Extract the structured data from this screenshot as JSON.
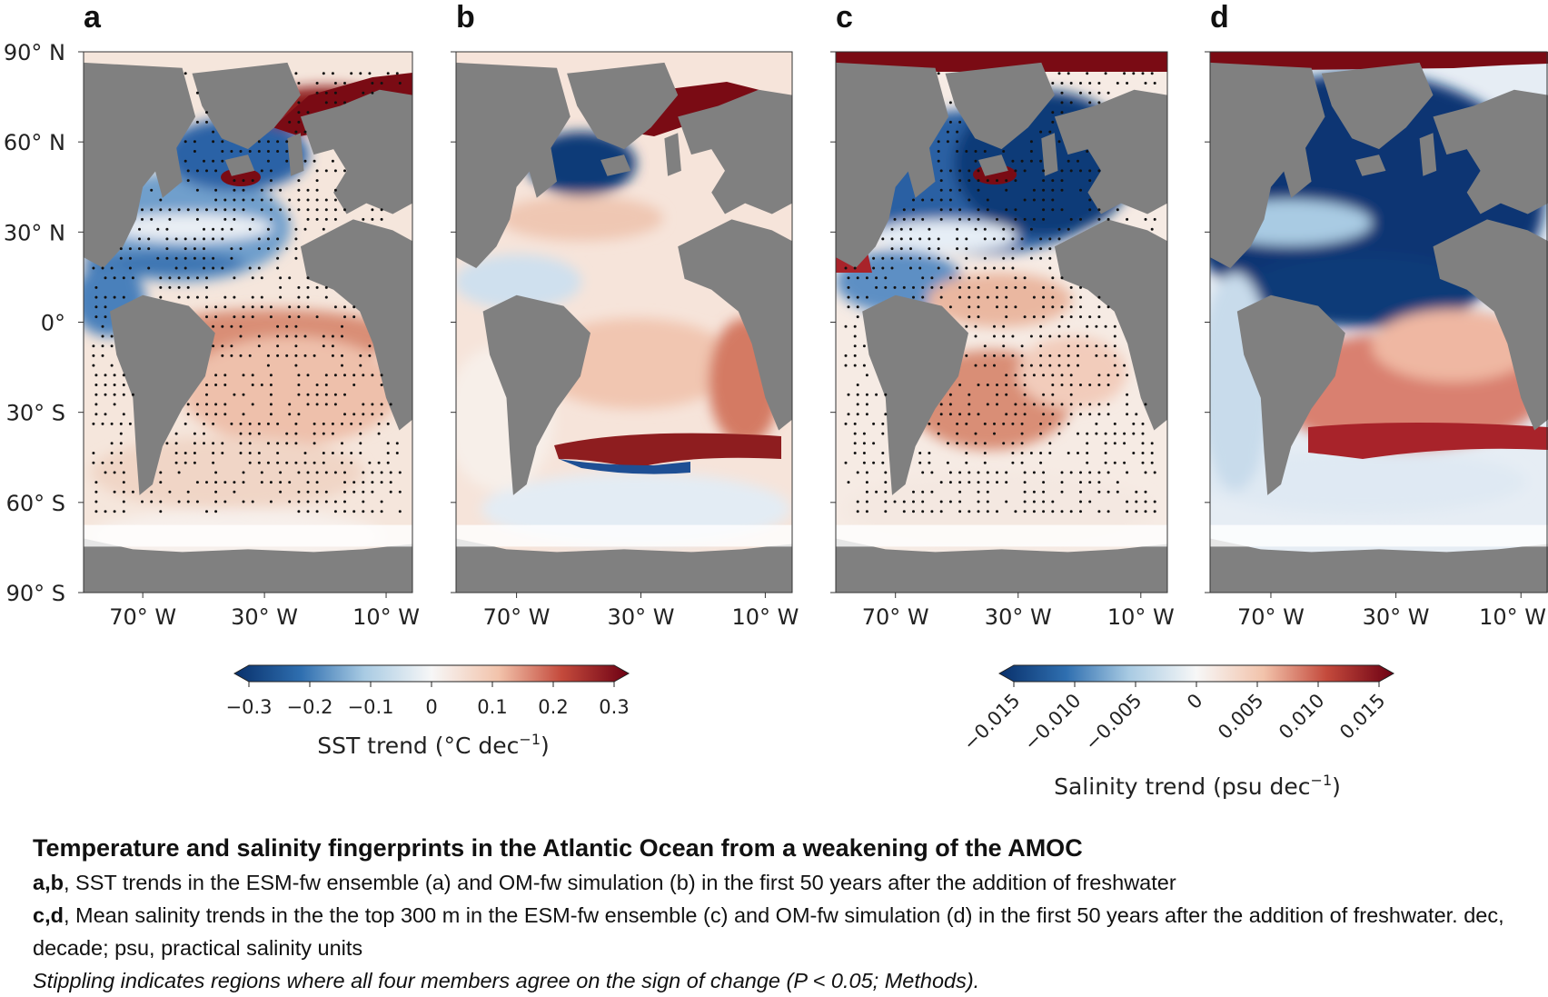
{
  "panels": [
    {
      "letter": "a",
      "variable": "sst",
      "simulation": "ESM-fw ensemble",
      "stippling": true
    },
    {
      "letter": "b",
      "variable": "sst",
      "simulation": "OM-fw simulation",
      "stippling": false
    },
    {
      "letter": "c",
      "variable": "salinity",
      "simulation": "ESM-fw ensemble",
      "stippling": true
    },
    {
      "letter": "d",
      "variable": "salinity",
      "simulation": "OM-fw simulation",
      "stippling": false
    }
  ],
  "axes": {
    "lat_ticks": [
      "90° N",
      "60° N",
      "30° N",
      "0°",
      "30° S",
      "60° S",
      "90° S"
    ],
    "lon_ticks": [
      "70° W",
      "30° W",
      "10° W"
    ]
  },
  "colorbars": [
    {
      "name": "sst",
      "label_main": "SST trend (°C dec",
      "label_sup": "−1",
      "label_end": ")",
      "ticks": [
        "−0.3",
        "−0.2",
        "−0.1",
        "0",
        "0.1",
        "0.2",
        "0.3"
      ],
      "range": [
        -0.3,
        0.3
      ]
    },
    {
      "name": "salinity",
      "label_main": "Salinity trend (psu dec",
      "label_sup": "−1",
      "label_end": ")",
      "ticks": [
        "−0.015",
        "−0.010",
        "−0.005",
        "0",
        "0.005",
        "0.010",
        "0.015"
      ],
      "range": [
        -0.015,
        0.015
      ]
    }
  ],
  "colors": {
    "land": "#808080",
    "deep_blue": "#08306b",
    "blue": "#2f6fb0",
    "light_blue": "#a9cbe3",
    "white": "#f7f7f7",
    "light_red": "#f2c3ab",
    "red": "#c44a3c",
    "deep_red": "#6d0013"
  },
  "caption": {
    "title": "Temperature and salinity fingerprints in the Atlantic Ocean from a weakening of the AMOC",
    "ab_label": "a,b",
    "ab_text": ", SST trends in the ESM-fw ensemble (a) and OM-fw simulation (b) in the first 50 years after the addition of freshwater",
    "cd_label": "c,d",
    "cd_text": ", Mean salinity trends in the the top 300 m in the ESM-fw ensemble (c) and OM-fw simulation (d) in the first 50 years after the addition of freshwater. dec, decade; psu, practical salinity units",
    "note": "Stippling indicates regions where all four members agree on the sign of change (P < 0.05; Methods)."
  }
}
